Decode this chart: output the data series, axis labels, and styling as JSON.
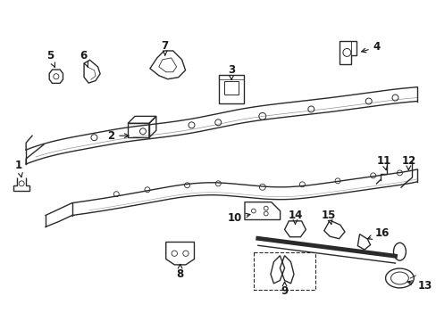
{
  "bg_color": "#ffffff",
  "fig_width": 4.89,
  "fig_height": 3.6,
  "dpi": 100,
  "text_color": "#1a1a1a",
  "label_fontsize": 8.5,
  "arrow_color": "#1a1a1a",
  "lc": "#2a2a2a"
}
